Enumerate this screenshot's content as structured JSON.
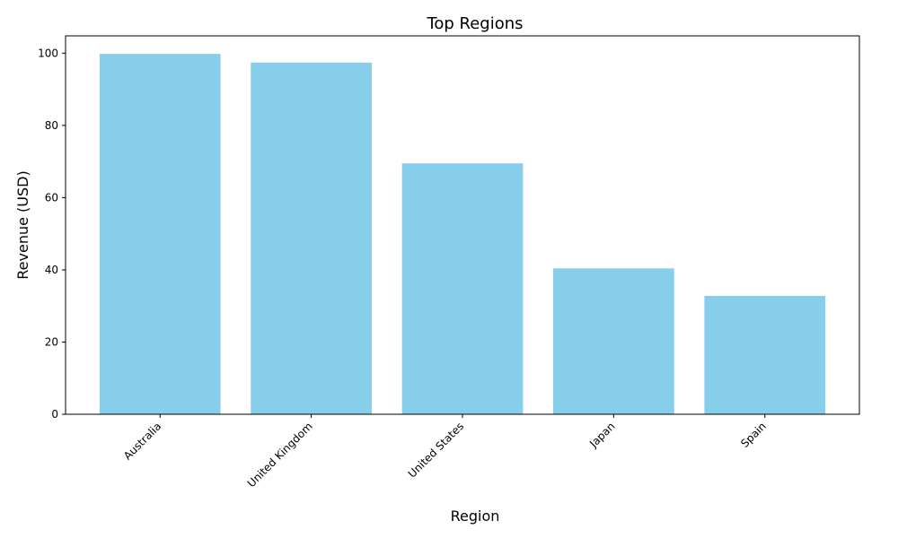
{
  "chart_data": {
    "type": "bar",
    "title": "Top Regions",
    "xlabel": "Region",
    "ylabel": "Revenue (USD)",
    "categories": [
      "Australia",
      "United Kingdom",
      "United States",
      "Japan",
      "Spain"
    ],
    "values": [
      99.8,
      97.4,
      69.5,
      40.4,
      32.8
    ],
    "ylim": [
      0,
      104.8
    ],
    "yticks": [
      0,
      20,
      40,
      60,
      80,
      100
    ],
    "bar_color": "#87CEEB",
    "grid": false,
    "legend": "none"
  }
}
